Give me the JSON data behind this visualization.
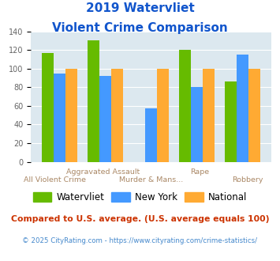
{
  "title_line1": "2019 Watervliet",
  "title_line2": "Violent Crime Comparison",
  "categories": [
    "All Violent Crime",
    "Aggravated Assault",
    "Murder & Mans...",
    "Rape",
    "Robbery"
  ],
  "watervliet": [
    117,
    130,
    0,
    120,
    86
  ],
  "new_york": [
    95,
    92,
    57,
    80,
    115
  ],
  "national": [
    100,
    100,
    100,
    100,
    100
  ],
  "color_watervliet": "#66bb00",
  "color_new_york": "#4499ff",
  "color_national": "#ffaa33",
  "ylim": [
    0,
    140
  ],
  "yticks": [
    0,
    20,
    40,
    60,
    80,
    100,
    120,
    140
  ],
  "plot_bg": "#dce8ef",
  "title_color": "#1155cc",
  "axis_label_color": "#aa8866",
  "legend_labels": [
    "Watervliet",
    "New York",
    "National"
  ],
  "footnote1": "Compared to U.S. average. (U.S. average equals 100)",
  "footnote2": "© 2025 CityRating.com - https://www.cityrating.com/crime-statistics/",
  "footnote1_color": "#cc3300",
  "footnote2_color": "#4488cc",
  "footnote2_prefix_color": "#888888"
}
